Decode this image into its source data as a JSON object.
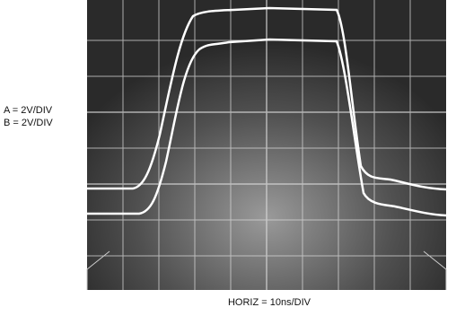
{
  "channel_a_label": "A = 2V/DIV",
  "channel_b_label": "B = 2V/DIV",
  "horizontal_label": "HORIZ = 10ns/DIV"
}
